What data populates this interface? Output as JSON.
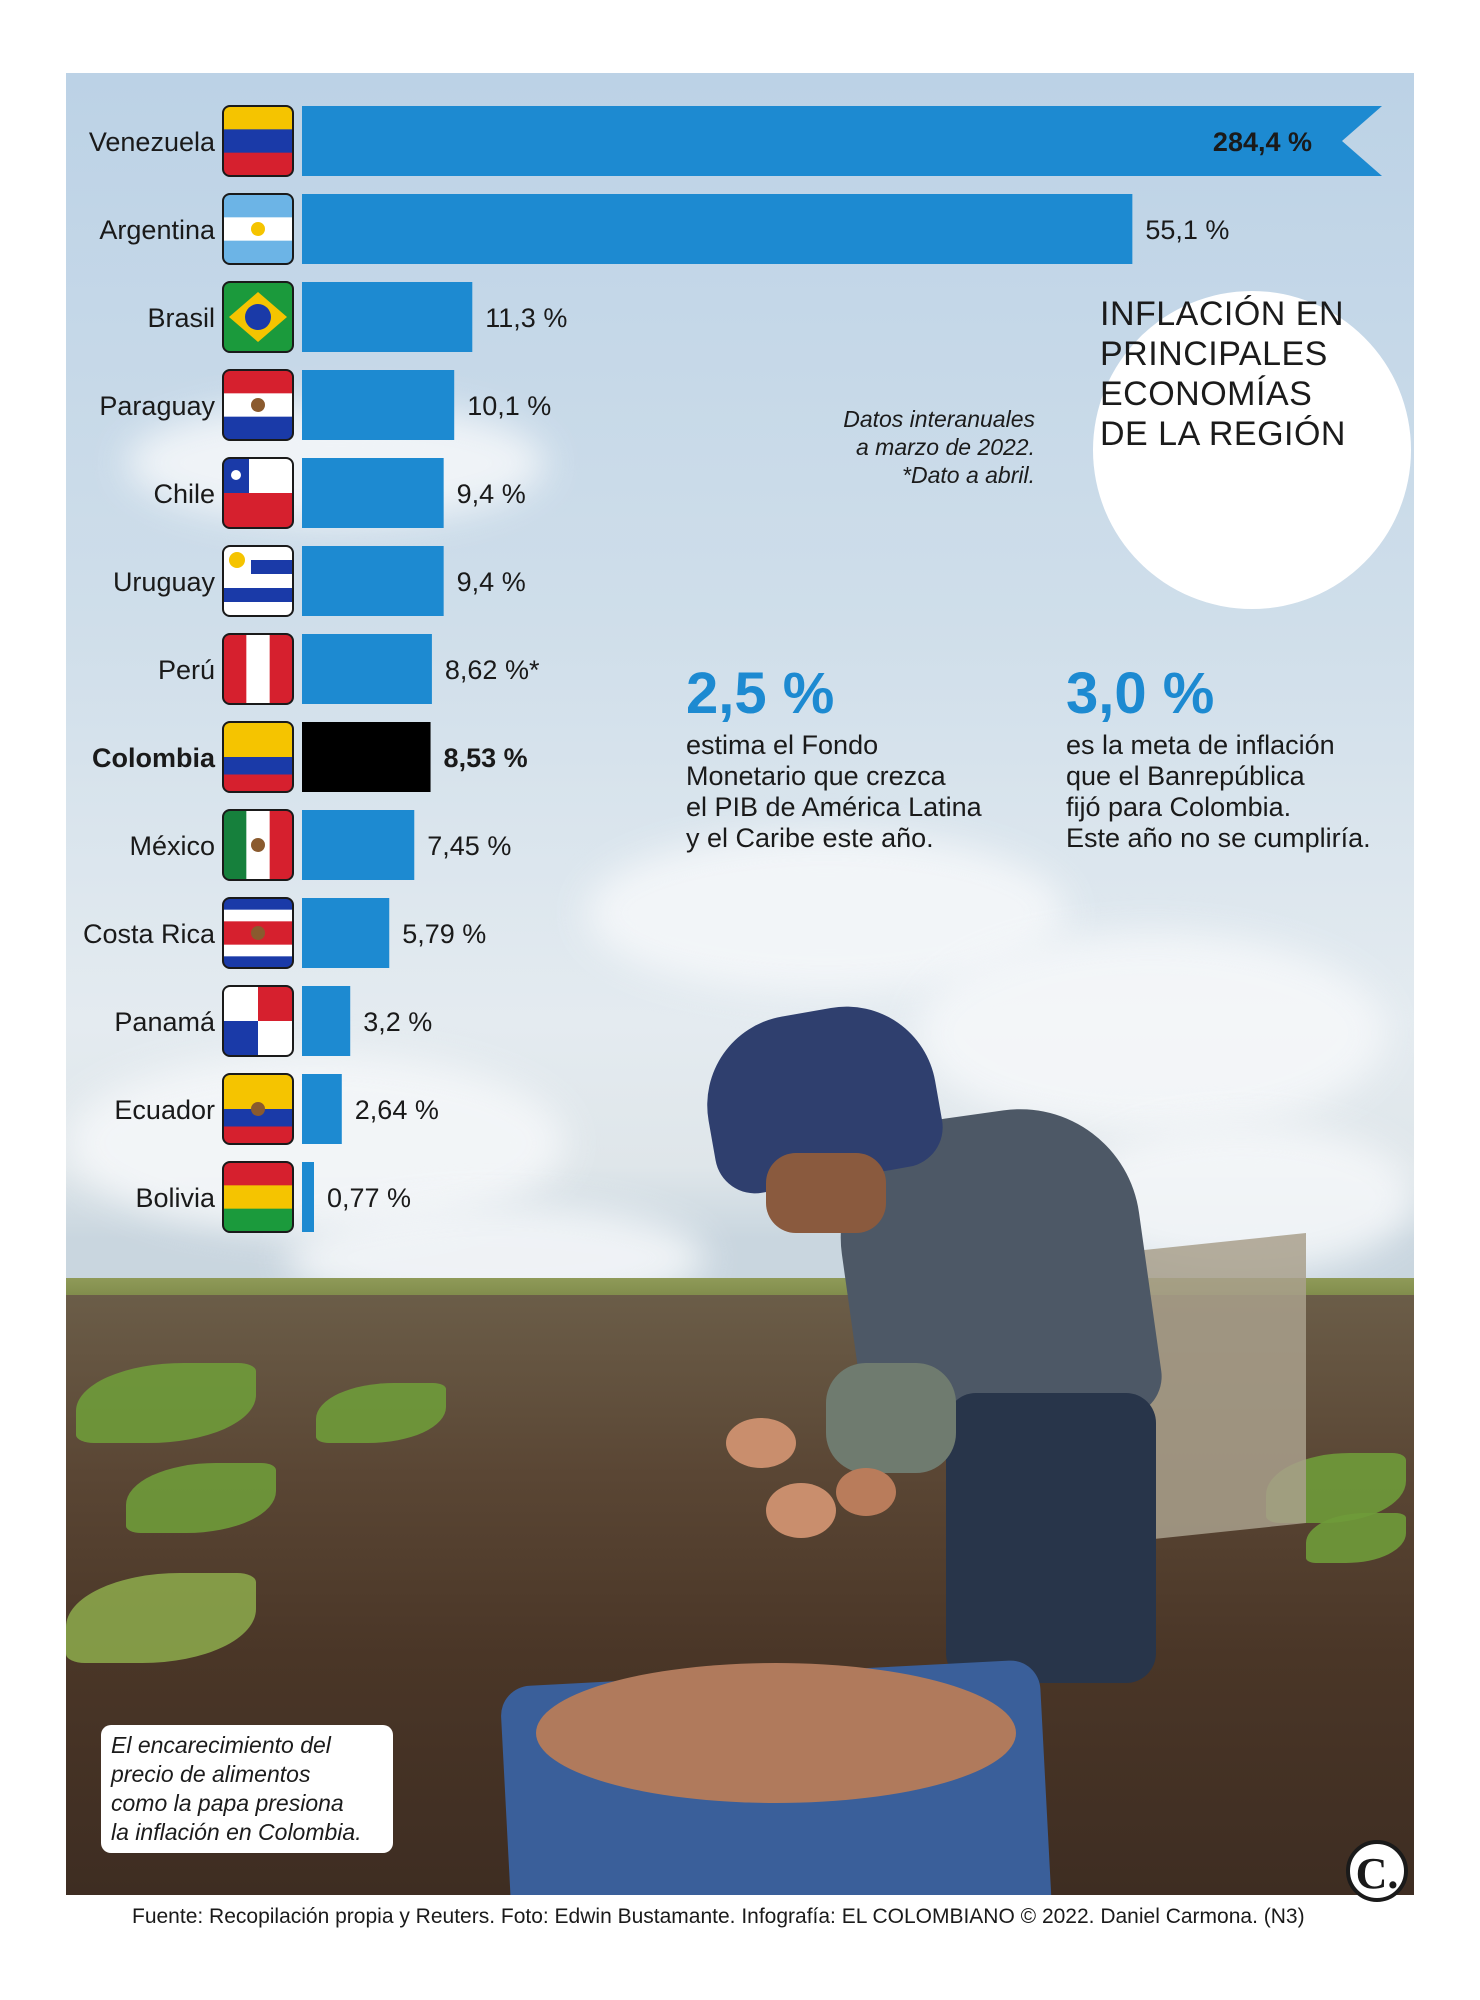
{
  "chart_data": {
    "type": "bar",
    "orientation": "horizontal",
    "title": "INFLACIÓN EN PRINCIPALES ECONOMÍAS DE LA REGIÓN",
    "subtitle": "Datos interanuales a marzo de 2022. *Dato a abril.",
    "categories": [
      "Venezuela",
      "Argentina",
      "Brasil",
      "Paraguay",
      "Chile",
      "Uruguay",
      "Perú",
      "Colombia",
      "México",
      "Costa Rica",
      "Panamá",
      "Ecuador",
      "Bolivia"
    ],
    "values": [
      284.4,
      55.1,
      11.3,
      10.1,
      9.4,
      9.4,
      8.62,
      8.53,
      7.45,
      5.79,
      3.2,
      2.64,
      0.77
    ],
    "value_labels": [
      "284,4 %",
      "55,1 %",
      "11,3 %",
      "10,1 %",
      "9,4 %",
      "9,4 %",
      "8,62 %*",
      "8,53 %",
      "7,45 %",
      "5,79 %",
      "3,2 %",
      "2,64 %",
      "0,77 %"
    ],
    "axis_break": "Venezuela",
    "highlight": "Colombia",
    "colors": {
      "bar": "#1d8ad1",
      "highlight": "#000000"
    }
  },
  "flags": [
    {
      "name": "venezuela-flag",
      "stripes": [
        "#f5c400",
        "#1a3aa8",
        "#d6202e"
      ]
    },
    {
      "name": "argentina-flag",
      "stripes": [
        "#6cb4e6",
        "#ffffff",
        "#6cb4e6"
      ]
    },
    {
      "name": "brasil-flag",
      "stripes": [
        "#1b9a3c",
        "#1b9a3c",
        "#1b9a3c"
      ]
    },
    {
      "name": "paraguay-flag",
      "stripes": [
        "#d6202e",
        "#ffffff",
        "#1a3aa8"
      ]
    },
    {
      "name": "chile-flag",
      "stripes": [
        "#ffffff",
        "#d6202e"
      ]
    },
    {
      "name": "uruguay-flag",
      "stripes": [
        "#ffffff",
        "#1a3aa8",
        "#ffffff",
        "#1a3aa8",
        "#ffffff"
      ]
    },
    {
      "name": "peru-flag",
      "stripes": [
        "#d6202e",
        "#ffffff",
        "#d6202e"
      ],
      "vertical": true
    },
    {
      "name": "colombia-flag",
      "stripes": [
        "#f5c400",
        "#f5c400",
        "#1a3aa8",
        "#d6202e"
      ]
    },
    {
      "name": "mexico-flag",
      "stripes": [
        "#16803c",
        "#ffffff",
        "#d6202e"
      ],
      "vertical": true
    },
    {
      "name": "costa-rica-flag",
      "stripes": [
        "#1a3aa8",
        "#ffffff",
        "#d6202e",
        "#d6202e",
        "#ffffff",
        "#1a3aa8"
      ]
    },
    {
      "name": "panama-flag",
      "stripes": [
        "#ffffff",
        "#d6202e"
      ]
    },
    {
      "name": "ecuador-flag",
      "stripes": [
        "#f5c400",
        "#f5c400",
        "#1a3aa8",
        "#d6202e"
      ]
    },
    {
      "name": "bolivia-flag",
      "stripes": [
        "#d6202e",
        "#f5c400",
        "#1b9a3c"
      ]
    }
  ],
  "title_lines": [
    "INFLACIÓN EN",
    "PRINCIPALES",
    "ECONOMÍAS",
    "DE LA REGIÓN"
  ],
  "note": [
    "Datos interanuales",
    "a marzo de 2022.",
    "*Dato a abril."
  ],
  "stats": [
    {
      "value": "2,5 %",
      "lines": [
        "estima el Fondo",
        "Monetario que crezca",
        "el PIB de América Latina",
        "y el Caribe este año."
      ]
    },
    {
      "value": "3,0 %",
      "lines": [
        "es la meta de inflación",
        "que el Banrepública",
        "fijó para Colombia.",
        "Este año no se cumpliría."
      ]
    }
  ],
  "caption": [
    "El encarecimiento del",
    "precio de alimentos",
    "como la papa presiona",
    "la inflación en Colombia."
  ],
  "logo": "C.",
  "source": "Fuente: Recopilación propia y Reuters. Foto: Edwin Bustamante. Infografía: EL COLOMBIANO © 2022. Daniel Carmona. (N3)"
}
